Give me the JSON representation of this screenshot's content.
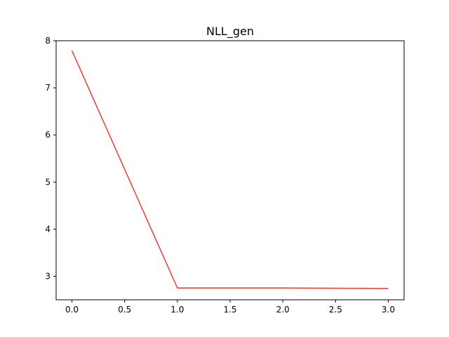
{
  "figure": {
    "background": "#ffffff"
  },
  "chart_data": {
    "type": "line",
    "title": "NLL_gen",
    "xlabel": "",
    "ylabel": "",
    "xlim": [
      -0.15,
      3.15
    ],
    "ylim": [
      2.5,
      8.0
    ],
    "x_ticks": [
      0.0,
      0.5,
      1.0,
      1.5,
      2.0,
      2.5,
      3.0
    ],
    "x_tick_labels": [
      "0.0",
      "0.5",
      "1.0",
      "1.5",
      "2.0",
      "2.5",
      "3.0"
    ],
    "y_ticks": [
      3,
      4,
      5,
      6,
      7,
      8
    ],
    "y_tick_labels": [
      "3",
      "4",
      "5",
      "6",
      "7",
      "8"
    ],
    "grid": false,
    "legend": "none",
    "series": [
      {
        "color": "#e8483d",
        "x": [
          0,
          1,
          2,
          3
        ],
        "y": [
          7.79,
          2.75,
          2.75,
          2.74
        ]
      }
    ]
  }
}
